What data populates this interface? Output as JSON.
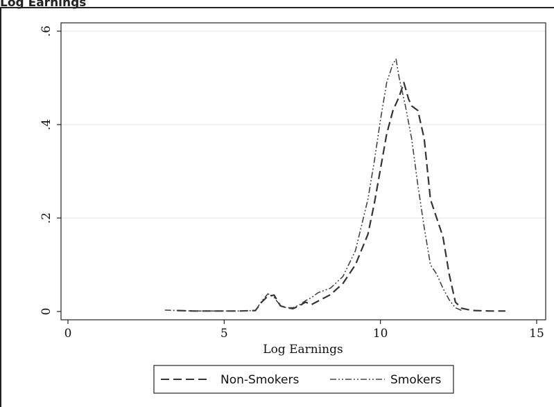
{
  "figure": {
    "caption_fragment": "Log Earnings"
  },
  "chart_data": {
    "type": "line",
    "title": "",
    "xlabel": "Log Earnings",
    "ylabel": "",
    "xlim": [
      0,
      15
    ],
    "ylim": [
      0,
      0.6
    ],
    "x_ticks": [
      0,
      5,
      10,
      15
    ],
    "x_tick_labels": [
      "0",
      "5",
      "10",
      "15"
    ],
    "y_ticks": [
      0,
      0.2,
      0.4,
      0.6
    ],
    "y_tick_labels": [
      "0",
      ".2",
      ".4",
      ".6"
    ],
    "grid": "horizontal",
    "legend_position": "bottom",
    "series": [
      {
        "name": "Non-Smokers",
        "line_style": "dashed",
        "color": "#333333",
        "x": [
          3.5,
          4.0,
          4.5,
          5.0,
          5.5,
          6.0,
          6.2,
          6.4,
          6.6,
          6.8,
          7.0,
          7.2,
          7.4,
          7.6,
          7.8,
          8.0,
          8.4,
          8.8,
          9.2,
          9.6,
          9.8,
          10.0,
          10.2,
          10.4,
          10.6,
          10.75,
          10.9,
          11.0,
          11.2,
          11.4,
          11.6,
          11.8,
          12.0,
          12.2,
          12.4,
          12.6,
          12.8,
          13.0,
          13.5,
          14.0
        ],
        "y": [
          0.002,
          0.001,
          0.001,
          0.001,
          0.001,
          0.002,
          0.02,
          0.033,
          0.035,
          0.012,
          0.008,
          0.006,
          0.012,
          0.02,
          0.015,
          0.022,
          0.036,
          0.06,
          0.1,
          0.165,
          0.23,
          0.305,
          0.38,
          0.43,
          0.46,
          0.49,
          0.455,
          0.44,
          0.43,
          0.37,
          0.24,
          0.2,
          0.16,
          0.08,
          0.02,
          0.007,
          0.004,
          0.002,
          0.001,
          0.001
        ]
      },
      {
        "name": "Smokers",
        "line_style": "dash-dot-dot",
        "color": "#444444",
        "x": [
          3.1,
          3.5,
          4.0,
          4.5,
          5.0,
          5.5,
          6.0,
          6.2,
          6.4,
          6.6,
          6.8,
          7.0,
          7.2,
          7.4,
          7.6,
          7.8,
          8.0,
          8.4,
          8.8,
          9.2,
          9.6,
          9.8,
          10.0,
          10.2,
          10.4,
          10.5,
          10.6,
          10.8,
          11.0,
          11.2,
          11.4,
          11.6,
          11.8,
          12.0,
          12.2,
          12.4,
          12.6
        ],
        "y": [
          0.003,
          0.002,
          0.001,
          0.001,
          0.001,
          0.001,
          0.002,
          0.022,
          0.038,
          0.03,
          0.012,
          0.008,
          0.008,
          0.014,
          0.023,
          0.03,
          0.04,
          0.05,
          0.075,
          0.13,
          0.24,
          0.32,
          0.41,
          0.49,
          0.53,
          0.54,
          0.5,
          0.44,
          0.37,
          0.27,
          0.18,
          0.1,
          0.08,
          0.05,
          0.025,
          0.008,
          0.002
        ]
      }
    ]
  }
}
